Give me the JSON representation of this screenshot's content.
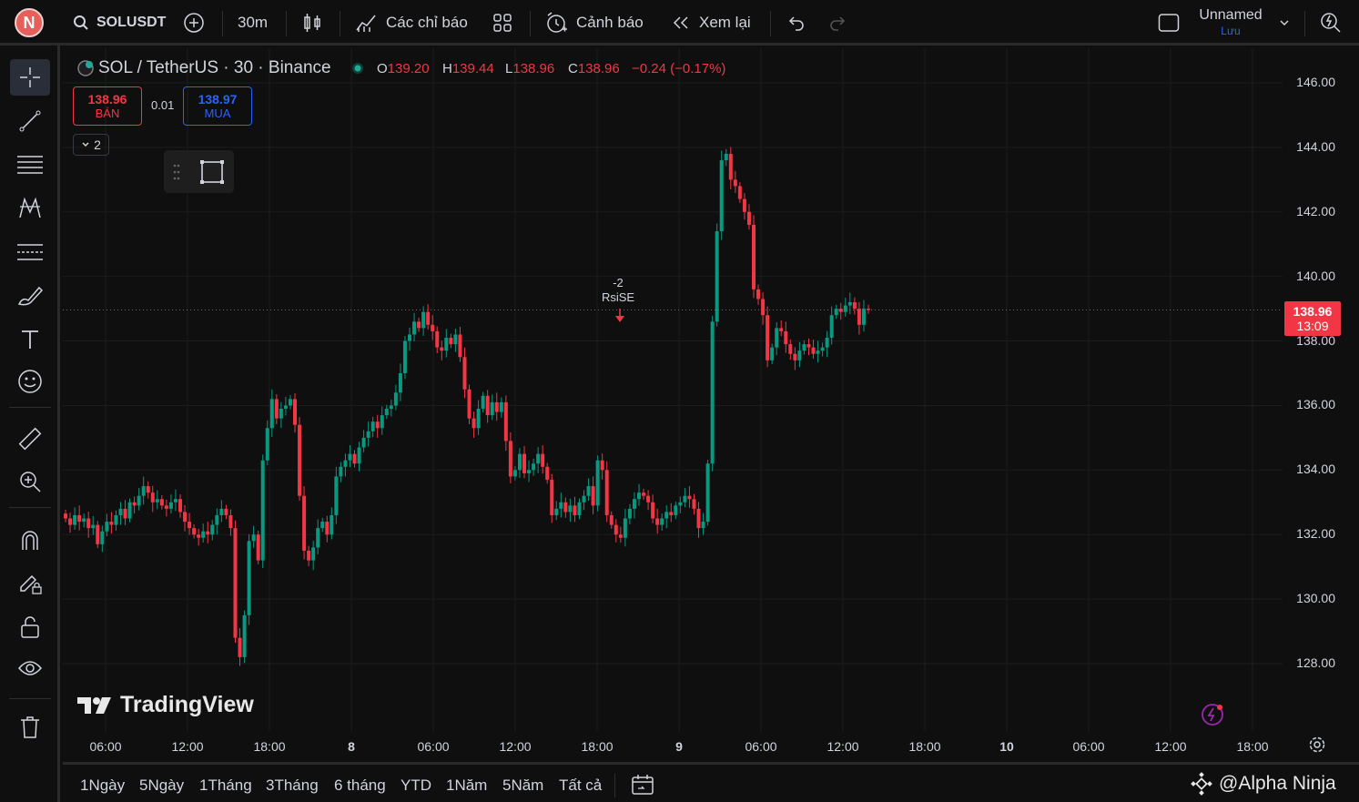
{
  "topbar": {
    "avatar_letter": "N",
    "symbol": "SOLUSDT",
    "interval": "30m",
    "indicators_label": "Các chỉ báo",
    "alerts_label": "Cảnh báo",
    "replay_label": "Xem lại",
    "layout_name": "Unnamed",
    "save_label": "Lưu"
  },
  "legend": {
    "title": "SOL / TetherUS · 30 · Binance",
    "o_label": "O",
    "o": "139.20",
    "h_label": "H",
    "h": "139.44",
    "l_label": "L",
    "l": "138.96",
    "c_label": "C",
    "c": "138.96",
    "change": "−0.24 (−0.17%)",
    "sell_price": "138.96",
    "sell_label": "BÁN",
    "spread": "0.01",
    "buy_price": "138.97",
    "buy_label": "MUA",
    "collapse_count": "2"
  },
  "annotation": {
    "value": "-2",
    "label": "RsiSE"
  },
  "price_tag": {
    "price": "138.96",
    "countdown": "13:09"
  },
  "watermark": "TradingView",
  "bottombar": {
    "ranges": [
      "1Ngày",
      "5Ngày",
      "1Tháng",
      "3Tháng",
      "6 tháng",
      "YTD",
      "1Năm",
      "5Năm",
      "Tất cả"
    ],
    "credit": "@Alpha Ninja"
  },
  "colors": {
    "up": "#089981",
    "down": "#f23645",
    "bg": "#0f0f0f",
    "grid": "#1c1c1c",
    "accent_blue": "#2962ff"
  },
  "chart_data": {
    "type": "candlestick",
    "title": "SOL / TetherUS · 30 · Binance",
    "ylim": [
      126.5,
      146.6
    ],
    "y_ticks": [
      "146.00",
      "144.00",
      "142.00",
      "140.00",
      "138.00",
      "136.00",
      "134.00",
      "132.00",
      "130.00",
      "128.00"
    ],
    "x_ticks": [
      "06:00",
      "12:00",
      "18:00",
      "8",
      "06:00",
      "12:00",
      "18:00",
      "9",
      "06:00",
      "12:00",
      "18:00",
      "10",
      "06:00",
      "12:00",
      "18:00"
    ],
    "last_price": 138.96,
    "close_series": [
      132.5,
      132.3,
      132.6,
      132.4,
      132.5,
      132.2,
      132.3,
      131.7,
      132.1,
      132.4,
      132.3,
      132.6,
      132.8,
      132.5,
      133.0,
      132.9,
      133.2,
      133.5,
      133.3,
      133.0,
      133.1,
      132.9,
      132.8,
      133.0,
      133.1,
      132.7,
      132.4,
      132.2,
      132.0,
      131.9,
      132.1,
      132.0,
      132.3,
      132.6,
      132.8,
      132.6,
      132.2,
      128.8,
      128.2,
      129.5,
      131.8,
      132.0,
      131.2,
      134.3,
      135.3,
      136.2,
      135.6,
      135.9,
      136.0,
      136.2,
      135.4,
      133.2,
      131.5,
      131.2,
      131.6,
      132.2,
      132.4,
      132.0,
      132.6,
      133.8,
      134.1,
      134.3,
      134.5,
      134.2,
      134.7,
      135.0,
      135.2,
      135.5,
      135.3,
      135.7,
      135.9,
      136.0,
      136.4,
      137.0,
      138.0,
      138.2,
      138.6,
      138.4,
      138.9,
      138.5,
      138.3,
      137.8,
      137.7,
      138.1,
      137.9,
      138.2,
      137.5,
      136.5,
      135.6,
      135.3,
      135.9,
      136.3,
      135.7,
      136.1,
      135.8,
      136.1,
      134.9,
      133.8,
      134.0,
      134.5,
      133.9,
      134.0,
      134.2,
      134.5,
      134.1,
      133.7,
      132.6,
      132.8,
      133.0,
      132.7,
      132.9,
      132.6,
      133.0,
      133.2,
      133.5,
      132.9,
      134.3,
      134.0,
      132.6,
      132.3,
      132.0,
      131.9,
      132.5,
      132.8,
      133.1,
      133.3,
      133.2,
      133.0,
      132.5,
      132.3,
      132.5,
      132.7,
      132.6,
      132.9,
      133.0,
      133.2,
      133.1,
      132.8,
      132.2,
      132.4,
      134.2,
      138.6,
      141.4,
      143.6,
      143.8,
      143.0,
      142.8,
      142.4,
      142.0,
      141.6,
      139.6,
      139.3,
      138.8,
      137.4,
      137.8,
      138.4,
      138.3,
      137.9,
      137.6,
      137.4,
      137.7,
      137.9,
      137.8,
      137.6,
      137.7,
      137.8,
      138.1,
      138.8,
      139.0,
      138.9,
      139.1,
      139.2,
      139.0,
      138.5,
      139.0,
      138.96
    ]
  }
}
